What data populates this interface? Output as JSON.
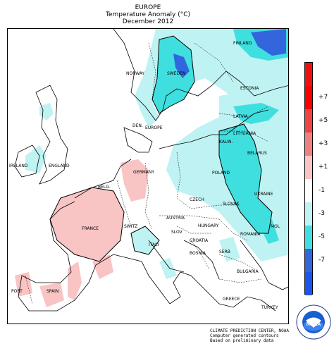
{
  "header": {
    "region": "EUROPE",
    "variable": "Temperature Anomaly (°C)",
    "period": "December 2012"
  },
  "legend": {
    "levels": [
      {
        "label": "+7",
        "color": "#ff0000"
      },
      {
        "label": "+5",
        "color": "#ee4444"
      },
      {
        "label": "+3",
        "color": "#f08080"
      },
      {
        "label": "+1",
        "color": "#f8c4c4"
      },
      {
        "label": "-1",
        "color": "#ffffff"
      },
      {
        "label": "-3",
        "color": "#bff2f2"
      },
      {
        "label": "-5",
        "color": "#40dfdf"
      },
      {
        "label": "-7",
        "color": "#3366dd"
      },
      {
        "label": "",
        "color": "#1a55ee"
      }
    ],
    "top_color": "#ee1111"
  },
  "labels": {
    "finland": "FINLAND",
    "norway": "NORWAY",
    "sweden": "SWEDEN",
    "estonia": "ESTONIA",
    "latvia": "LATVIA",
    "den": "DEN.",
    "lithuania": "LITHUANIA",
    "europe": "EUROPE",
    "ireland": "IRELAND",
    "england": "ENGLAND",
    "belarus": "BELARUS",
    "germany": "GERMANY",
    "belg": "BELG.",
    "poland": "POLAND",
    "czech": "CZECH",
    "slovak": "SLOVAK",
    "ukraine": "UKRAINE",
    "france": "FRANCE",
    "switz": "SWITZ",
    "austria": "AUSTRIA",
    "hungary": "HUNGARY",
    "romania": "ROMANIA",
    "mol": "MOL",
    "italy": "ITALY",
    "slov": "SLOV",
    "croatia": "CROATIA",
    "bosnia": "BOSNIA",
    "serb": "SERB",
    "bulgaria": "BULGARIA",
    "port": "PORT",
    "spain": "SPAIN",
    "greece": "GREECE",
    "turkey": "TURKEY",
    "kalin": "KALIN."
  },
  "credits": {
    "line1": "CLIMATE PREDICTION CENTER, NOAA",
    "line2": "Computer generated contours",
    "line3": "Based on preliminary data"
  },
  "logo": {
    "text": "NOAA",
    "ring_text": "NATIONAL OCEANIC AND ATMOSPHERIC ADMINISTRATION",
    "ring_text2": "U.S. DEPARTMENT OF COMMERCE"
  }
}
